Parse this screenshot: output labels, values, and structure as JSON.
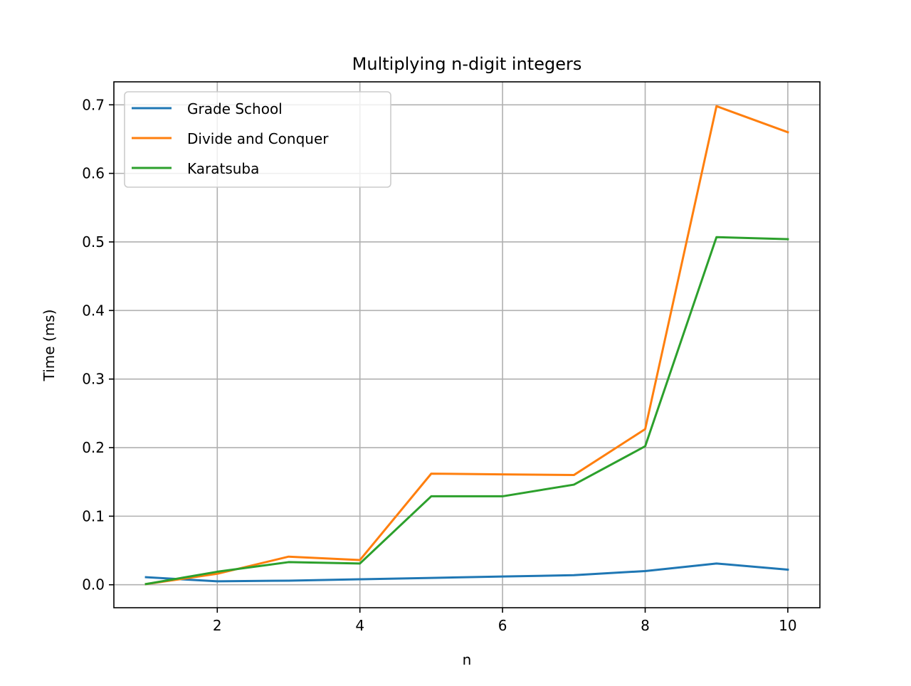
{
  "chart_data": {
    "type": "line",
    "title": "Multiplying n-digit integers",
    "xlabel": "n",
    "ylabel": "Time (ms)",
    "x": [
      1,
      2,
      3,
      4,
      5,
      6,
      7,
      8,
      9,
      10
    ],
    "xlim": [
      0.55,
      10.45
    ],
    "ylim": [
      -0.0335,
      0.7335
    ],
    "xticks": [
      2,
      4,
      6,
      8,
      10
    ],
    "yticks": [
      0.0,
      0.1,
      0.2,
      0.3,
      0.4,
      0.5,
      0.6,
      0.7
    ],
    "xtick_labels": [
      "2",
      "4",
      "6",
      "8",
      "10"
    ],
    "ytick_labels": [
      "0.0",
      "0.1",
      "0.2",
      "0.3",
      "0.4",
      "0.5",
      "0.6",
      "0.7"
    ],
    "grid": true,
    "legend_position": "top-left",
    "series": [
      {
        "name": "Grade School",
        "color": "#1f77b4",
        "values": [
          0.011,
          0.005,
          0.006,
          0.008,
          0.01,
          0.012,
          0.014,
          0.02,
          0.031,
          0.022
        ]
      },
      {
        "name": "Divide and Conquer",
        "color": "#ff7f0e",
        "values": [
          0.001,
          0.016,
          0.041,
          0.036,
          0.162,
          0.161,
          0.16,
          0.227,
          0.698,
          0.66
        ]
      },
      {
        "name": "Karatsuba",
        "color": "#2ca02c",
        "values": [
          0.001,
          0.019,
          0.033,
          0.031,
          0.129,
          0.129,
          0.146,
          0.202,
          0.507,
          0.504
        ]
      }
    ]
  }
}
